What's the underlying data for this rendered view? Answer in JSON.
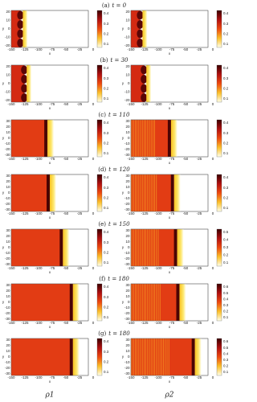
{
  "figure": {
    "x_label": "x",
    "y_label": "y",
    "x_ticks": [
      "-150",
      "-125",
      "-100",
      "-75",
      "-50",
      "-25",
      "0"
    ],
    "column_labels": [
      "ρ1",
      "ρ2"
    ],
    "rows": [
      {
        "label": "(a)",
        "time": "t = 0",
        "y_ticks": [
          "20",
          "10",
          "0",
          "-10",
          "-20"
        ],
        "left_bar": [
          "0.4",
          "0.3",
          "0.2",
          "0.1"
        ],
        "right_bar": [
          "0.4",
          "0.3",
          "0.2",
          "0.1"
        ]
      },
      {
        "label": "(b)",
        "time": "t = 30",
        "y_ticks": [
          "20",
          "10",
          "0",
          "-10",
          "-20"
        ],
        "left_bar": [
          "0.4",
          "0.3",
          "0.2",
          "0.1"
        ],
        "right_bar": [
          "0.4",
          "0.3",
          "0.2",
          "0.1"
        ]
      },
      {
        "label": "(c)",
        "time": "t = 110",
        "y_ticks": [
          "30",
          "20",
          "10",
          "0",
          "-10",
          "-20",
          "-30"
        ],
        "left_bar": [
          "0.4",
          "0.3",
          "0.2",
          "0.1"
        ],
        "right_bar": [
          "0.4",
          "0.3",
          "0.2",
          "0.1"
        ]
      },
      {
        "label": "(d)",
        "time": "t = 120",
        "y_ticks": [
          "30",
          "20",
          "10",
          "0",
          "-10",
          "-20",
          "-30"
        ],
        "left_bar": [
          "0.4",
          "0.3",
          "0.2",
          "0.1"
        ],
        "right_bar": [
          "0.4",
          "0.3",
          "0.2",
          "0.1"
        ]
      },
      {
        "label": "(e)",
        "time": "t = 150",
        "y_ticks": [
          "30",
          "20",
          "10",
          "0",
          "-10",
          "-20",
          "-30"
        ],
        "left_bar": [
          "0.4",
          "0.3",
          "0.2",
          "0.1"
        ],
        "right_bar": [
          "0.5",
          "0.4",
          "0.3",
          "0.2",
          "0.1"
        ]
      },
      {
        "label": "(f)",
        "time": "t = 180",
        "y_ticks": [
          "30",
          "20",
          "10",
          "0",
          "-10",
          "-20",
          "-30"
        ],
        "left_bar": [
          "0.4",
          "0.3",
          "0.2",
          "0.1"
        ],
        "right_bar": [
          "0.6",
          "0.5",
          "0.4",
          "0.3",
          "0.2",
          "0.1"
        ]
      },
      {
        "label": "(g)",
        "time": "t = 180",
        "y_ticks": [
          "30",
          "20",
          "10",
          "0",
          "-10",
          "-20",
          "-30"
        ],
        "left_bar": [
          "0.4",
          "0.3",
          "0.2",
          "0.1"
        ],
        "right_bar": [
          "0.6",
          "0.5",
          "0.4",
          "0.3",
          "0.2",
          "0.1"
        ]
      }
    ]
  }
}
